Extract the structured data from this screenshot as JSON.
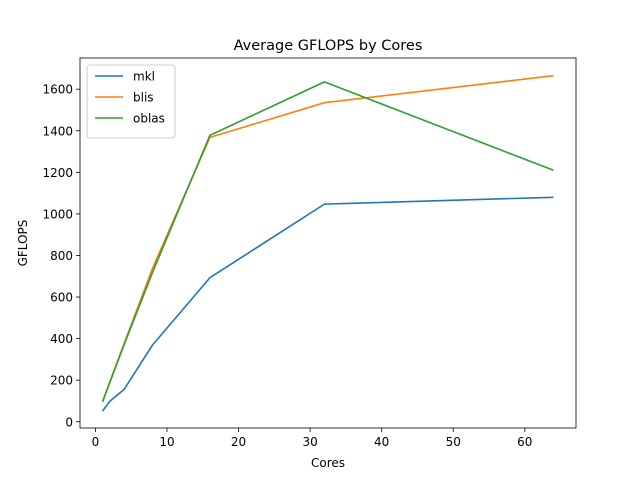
{
  "chart_data": {
    "type": "line",
    "title": "Average GFLOPS by Cores",
    "xlabel": "Cores",
    "ylabel": "GFLOPS",
    "xlim": [
      -2.15,
      67.15
    ],
    "ylim": [
      -30,
      1750
    ],
    "xticks": [
      0,
      10,
      20,
      30,
      40,
      50,
      60
    ],
    "yticks": [
      0,
      200,
      400,
      600,
      800,
      1000,
      1200,
      1400,
      1600
    ],
    "grid": false,
    "legend_position": "upper-left",
    "series": [
      {
        "name": "mkl",
        "color": "#1f77b4",
        "x": [
          1,
          2,
          4,
          8,
          16,
          32,
          64
        ],
        "y": [
          52,
          98,
          155,
          370,
          693,
          1047,
          1080
        ]
      },
      {
        "name": "blis",
        "color": "#ff7f0e",
        "x": [
          1,
          2,
          4,
          8,
          16,
          32,
          64
        ],
        "y": [
          95,
          190,
          375,
          740,
          1368,
          1535,
          1665
        ]
      },
      {
        "name": "oblas",
        "color": "#2ca02c",
        "x": [
          1,
          2,
          4,
          8,
          16,
          32,
          64
        ],
        "y": [
          97,
          188,
          370,
          720,
          1378,
          1635,
          1210
        ]
      }
    ]
  }
}
